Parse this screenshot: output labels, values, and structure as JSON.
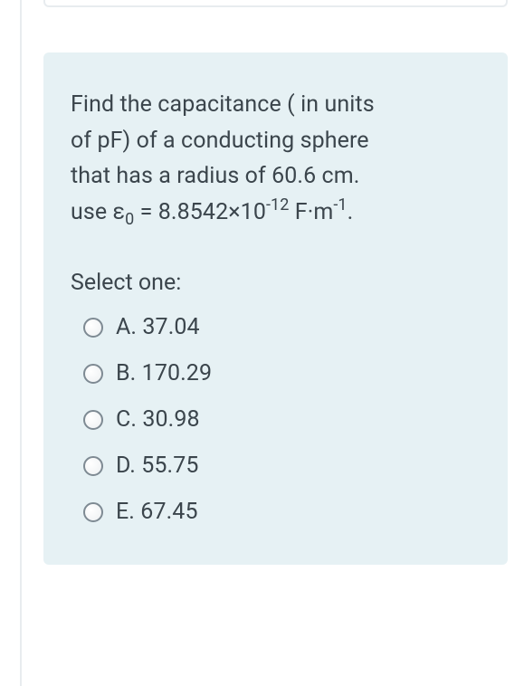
{
  "card": {
    "question_line1": "Find the capacitance ( in units",
    "question_line2": "of pF) of a conducting sphere",
    "question_line3": "that has a radius of 60.6 cm.",
    "use_prefix": " use ",
    "epsilon": "ε",
    "epsilon_sub": "0",
    "equals": " = 8.8542×10",
    "exp": "-12",
    "unit_mid": " F·m",
    "unit_exp": "-1",
    "unit_end": "."
  },
  "select_label": "Select one:",
  "options": [
    {
      "label": "A. 37.04"
    },
    {
      "label": "B. 170.29"
    },
    {
      "label": "C. 30.98"
    },
    {
      "label": "D. 55.75"
    },
    {
      "label": "E. 67.45"
    }
  ],
  "colors": {
    "card_bg": "#e6f1f4",
    "text": "#3b454c",
    "radio_border": "#7e8a93",
    "rule": "#e8ecef"
  }
}
